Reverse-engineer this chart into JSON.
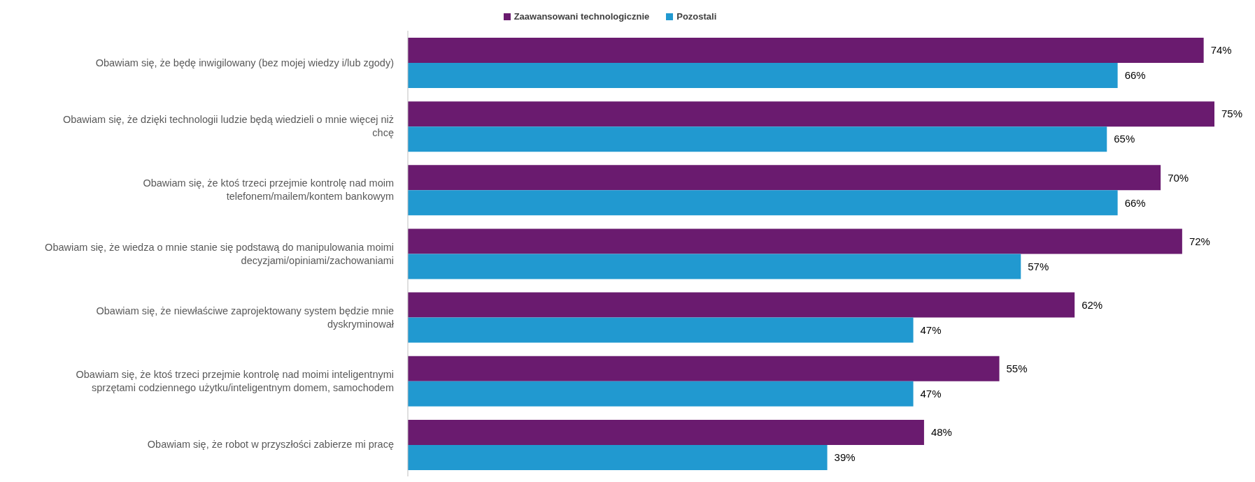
{
  "chart_data": {
    "type": "bar",
    "orientation": "horizontal",
    "categories": [
      "Obawiam się, że będę inwigilowany (bez mojej wiedzy i/lub zgody)",
      "Obawiam się, że dzięki technologii ludzie będą wiedzieli o mnie więcej niż chcę",
      "Obawiam się, że ktoś trzeci przejmie kontrolę nad moim telefonem/mailem/kontem bankowym",
      "Obawiam się, że wiedza o mnie stanie się podstawą do manipulowania moimi decyzjami/opiniami/zachowaniami",
      "Obawiam się, że niewłaściwe zaprojektowany system będzie mnie dyskryminował",
      "Obawiam się, że ktoś trzeci przejmie kontrolę nad moimi inteligentnymi sprzętami codziennego użytku/inteligentnym domem, samochodem",
      "Obawiam się, że robot w przyszłości zabierze mi pracę"
    ],
    "series": [
      {
        "name": "Zaawansowani technologicznie",
        "color": "#6a1b6f",
        "values": [
          74,
          75,
          70,
          72,
          62,
          55,
          48
        ],
        "value_labels": [
          "74%",
          "75%",
          "70%",
          "72%",
          "62%",
          "55%",
          "48%"
        ]
      },
      {
        "name": "Pozostali",
        "color": "#2199d0",
        "values": [
          66,
          65,
          66,
          57,
          47,
          47,
          39
        ],
        "value_labels": [
          "66%",
          "65%",
          "66%",
          "57%",
          "47%",
          "47%",
          "39%"
        ]
      }
    ],
    "legend": "top",
    "grid": false
  }
}
